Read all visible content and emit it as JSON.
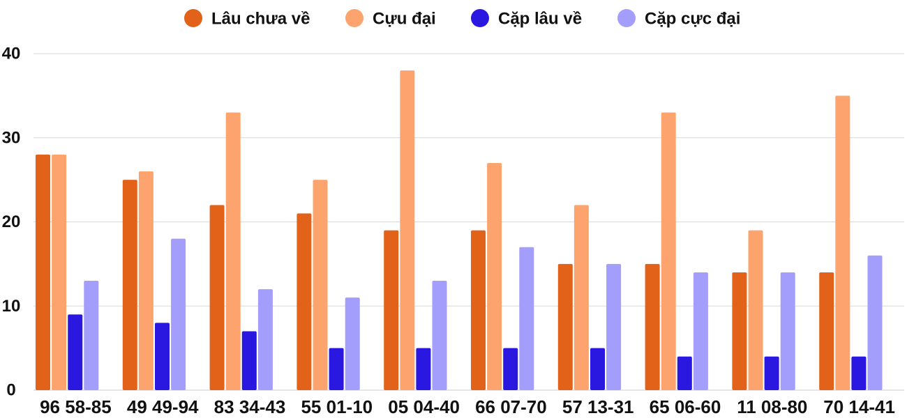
{
  "chart_data": {
    "type": "bar",
    "title": "",
    "xlabel": "",
    "ylabel": "",
    "ylim": [
      0,
      40
    ],
    "yticks": [
      "0",
      "10",
      "20",
      "30",
      "40"
    ],
    "grid": true,
    "legend_position": "top-center",
    "categories": [
      "96 58-85",
      "49 49-94",
      "83 34-43",
      "55 01-10",
      "05 04-40",
      "66 07-70",
      "57 13-31",
      "65 06-60",
      "11 08-80",
      "70 14-41"
    ],
    "series": [
      {
        "name": "Lâu chưa về",
        "color": "#e2621a",
        "values": [
          28,
          25,
          22,
          21,
          19,
          19,
          15,
          15,
          14,
          14
        ]
      },
      {
        "name": "Cựu đại",
        "color": "#fda46e",
        "values": [
          28,
          26,
          33,
          25,
          38,
          27,
          22,
          33,
          19,
          35
        ]
      },
      {
        "name": "Cặp lâu về",
        "color": "#2a17e0",
        "values": [
          9,
          8,
          7,
          5,
          5,
          5,
          5,
          4,
          4,
          4
        ]
      },
      {
        "name": "Cặp cực đại",
        "color": "#a39dfc",
        "values": [
          13,
          18,
          12,
          11,
          13,
          17,
          15,
          14,
          14,
          16
        ]
      }
    ]
  }
}
